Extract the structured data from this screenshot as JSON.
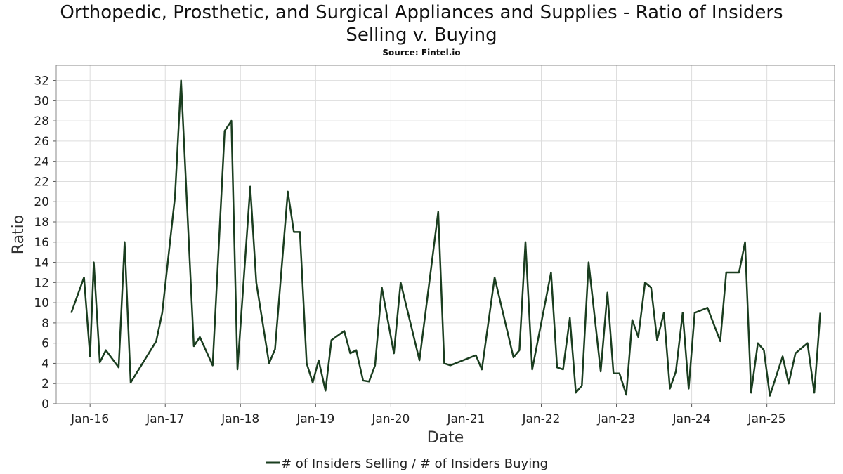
{
  "chart_data": {
    "type": "line",
    "title_line1": "Orthopedic, Prosthetic, and Surgical Appliances and Supplies - Ratio of Insiders",
    "title_line2": "Selling v. Buying",
    "subtitle": "Source: Fintel.io",
    "xlabel": "Date",
    "ylabel": "Ratio",
    "ylim": [
      0,
      33.5
    ],
    "xlim": [
      2015.55,
      2025.9
    ],
    "y_ticks": [
      "0",
      "2",
      "4",
      "6",
      "8",
      "10",
      "12",
      "14",
      "16",
      "18",
      "20",
      "22",
      "24",
      "26",
      "28",
      "30",
      "32"
    ],
    "x_ticks": [
      {
        "label": "Jan-16",
        "x": 2016.0
      },
      {
        "label": "Jan-17",
        "x": 2017.0
      },
      {
        "label": "Jan-18",
        "x": 2018.0
      },
      {
        "label": "Jan-19",
        "x": 2019.0
      },
      {
        "label": "Jan-20",
        "x": 2020.0
      },
      {
        "label": "Jan-21",
        "x": 2021.0
      },
      {
        "label": "Jan-22",
        "x": 2022.0
      },
      {
        "label": "Jan-23",
        "x": 2023.0
      },
      {
        "label": "Jan-24",
        "x": 2024.0
      },
      {
        "label": "Jan-25",
        "x": 2025.0
      }
    ],
    "grid": true,
    "legend": "bottom",
    "series": [
      {
        "name": "# of Insiders Selling / # of Insiders Buying",
        "color": "#1a3d1f",
        "x": [
          2015.75,
          2015.92,
          2016.0,
          2016.05,
          2016.13,
          2016.21,
          2016.38,
          2016.46,
          2016.54,
          2016.88,
          2016.96,
          2017.13,
          2017.21,
          2017.38,
          2017.46,
          2017.63,
          2017.79,
          2017.88,
          2017.96,
          2018.13,
          2018.21,
          2018.38,
          2018.46,
          2018.63,
          2018.71,
          2018.79,
          2018.88,
          2018.96,
          2019.04,
          2019.13,
          2019.21,
          2019.38,
          2019.46,
          2019.54,
          2019.63,
          2019.71,
          2019.79,
          2019.88,
          2020.04,
          2020.13,
          2020.38,
          2020.63,
          2020.71,
          2020.79,
          2021.13,
          2021.21,
          2021.38,
          2021.63,
          2021.71,
          2021.79,
          2021.88,
          2022.13,
          2022.21,
          2022.29,
          2022.38,
          2022.46,
          2022.54,
          2022.63,
          2022.79,
          2022.88,
          2022.96,
          2023.04,
          2023.13,
          2023.21,
          2023.29,
          2023.38,
          2023.46,
          2023.54,
          2023.63,
          2023.71,
          2023.79,
          2023.88,
          2023.96,
          2024.04,
          2024.21,
          2024.38,
          2024.46,
          2024.63,
          2024.71,
          2024.79,
          2024.88,
          2024.96,
          2025.04,
          2025.21,
          2025.29,
          2025.38,
          2025.54,
          2025.63,
          2025.71
        ],
        "values": [
          9.0,
          12.5,
          4.7,
          14.0,
          4.1,
          5.3,
          3.6,
          16.0,
          2.1,
          6.2,
          9.0,
          20.5,
          32.0,
          5.7,
          6.6,
          3.8,
          27.0,
          28.0,
          3.4,
          21.5,
          12.0,
          4.0,
          5.4,
          21.0,
          17.0,
          17.0,
          4.0,
          2.1,
          4.3,
          1.3,
          6.3,
          7.2,
          5.0,
          5.3,
          2.3,
          2.2,
          3.8,
          11.5,
          5.0,
          12.0,
          4.3,
          19.0,
          4.0,
          3.8,
          4.8,
          3.4,
          12.5,
          4.6,
          5.3,
          16.0,
          3.4,
          13.0,
          3.6,
          3.4,
          8.5,
          1.1,
          1.8,
          14.0,
          3.2,
          11.0,
          3.0,
          3.0,
          0.9,
          8.3,
          6.6,
          12.0,
          11.5,
          6.3,
          9.0,
          1.5,
          3.2,
          9.0,
          1.5,
          9.0,
          9.5,
          6.2,
          13.0,
          13.0,
          16.0,
          1.1,
          6.0,
          5.3,
          0.8,
          4.7,
          2.0,
          5.0,
          6.0,
          1.1,
          9.0
        ]
      }
    ]
  }
}
